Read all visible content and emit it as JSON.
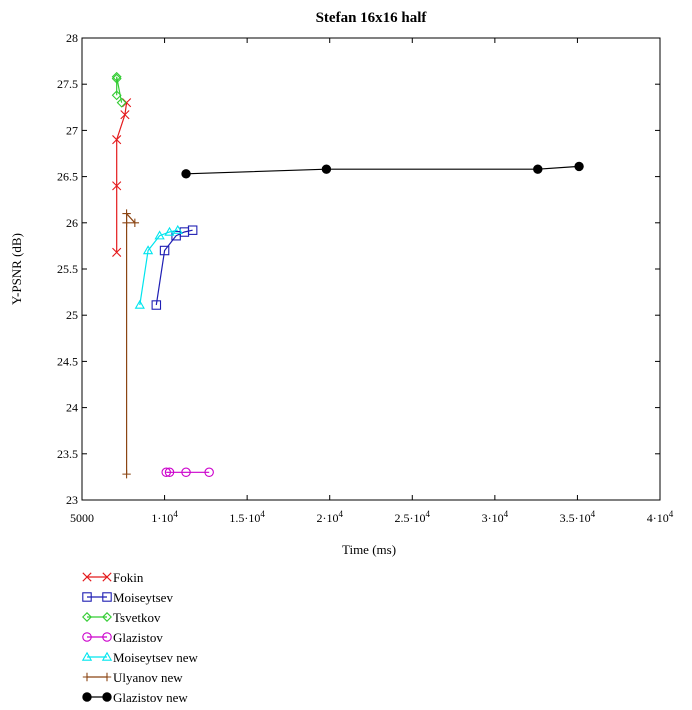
{
  "chart_data": {
    "type": "scatter",
    "title": "Stefan 16x16 half",
    "xlabel": "Time (ms)",
    "ylabel": "Y-PSNR (dB)",
    "xlim": [
      5000,
      40000
    ],
    "ylim": [
      23,
      28
    ],
    "grid": false,
    "legend_position": "bottom-left",
    "x_ticks": [
      {
        "value": 5000,
        "label": "5000"
      },
      {
        "value": 10000,
        "label": "1·10",
        "exp": "4"
      },
      {
        "value": 15000,
        "label": "1.5·10",
        "exp": "4"
      },
      {
        "value": 20000,
        "label": "2·10",
        "exp": "4"
      },
      {
        "value": 25000,
        "label": "2.5·10",
        "exp": "4"
      },
      {
        "value": 30000,
        "label": "3·10",
        "exp": "4"
      },
      {
        "value": 35000,
        "label": "3.5·10",
        "exp": "4"
      },
      {
        "value": 40000,
        "label": "4·10",
        "exp": "4"
      }
    ],
    "y_ticks": [
      "23",
      "23.5",
      "24",
      "24.5",
      "25",
      "25.5",
      "26",
      "26.5",
      "27",
      "27.5",
      "28"
    ],
    "series": [
      {
        "name": "Fokin",
        "color": "#e41a1c",
        "marker": "x",
        "x": [
          7100,
          7100,
          7100,
          7600,
          7700
        ],
        "y": [
          25.68,
          26.4,
          26.9,
          27.17,
          27.3
        ]
      },
      {
        "name": "Moiseytsev",
        "color": "#1f1fb4",
        "marker": "square",
        "x": [
          9500,
          10000,
          10700,
          11200,
          11700
        ],
        "y": [
          25.11,
          25.7,
          25.86,
          25.9,
          25.92
        ]
      },
      {
        "name": "Tsvetkov",
        "color": "#33cc33",
        "marker": "diamond",
        "x": [
          7100,
          7100,
          7100,
          7400
        ],
        "y": [
          27.38,
          27.56,
          27.58,
          27.3
        ]
      },
      {
        "name": "Glazistov",
        "color": "#cc00cc",
        "marker": "circle",
        "x": [
          10100,
          10300,
          11300,
          12700
        ],
        "y": [
          23.3,
          23.3,
          23.3,
          23.3
        ]
      },
      {
        "name": "Moiseytsev new",
        "color": "#00e5ee",
        "marker": "triangle",
        "x": [
          8500,
          9000,
          9700,
          10300,
          10800
        ],
        "y": [
          25.11,
          25.7,
          25.86,
          25.9,
          25.92
        ]
      },
      {
        "name": "Ulyanov new",
        "color": "#8b4513",
        "marker": "plus",
        "x": [
          7700,
          7700,
          7700,
          8200
        ],
        "y": [
          23.28,
          26.0,
          26.1,
          26.0
        ]
      },
      {
        "name": "Glazistov new",
        "color": "#000000",
        "marker": "filled-circle",
        "x": [
          11300,
          19800,
          32600,
          35100
        ],
        "y": [
          26.53,
          26.58,
          26.58,
          26.61
        ]
      }
    ]
  }
}
